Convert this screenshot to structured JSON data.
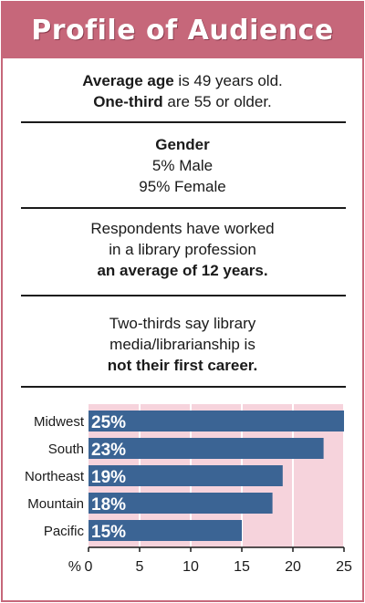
{
  "header": {
    "title": "Profile of Audience"
  },
  "age": {
    "line1_bold": "Average age",
    "line1_rest": " is 49 years old.",
    "line2_bold": "One-third",
    "line2_rest": " are 55 or older."
  },
  "gender": {
    "heading": "Gender",
    "male": "5% Male",
    "female": "95% Female"
  },
  "experience": {
    "line1": "Respondents have worked",
    "line2": "in a library profession",
    "line3_bold": "an average of 12 years."
  },
  "career": {
    "line1": "Two-thirds say library",
    "line2": "media/librarianship is",
    "line3_bold": "not their first career."
  },
  "colors": {
    "accent": "#c6677a",
    "bar": "#3b6494",
    "plot_bg": "#f6d3dc"
  },
  "chart_data": {
    "type": "bar",
    "orientation": "horizontal",
    "categories": [
      "Midwest",
      "South",
      "Northeast",
      "Mountain",
      "Pacific"
    ],
    "values": [
      25,
      23,
      19,
      18,
      15
    ],
    "value_labels": [
      "25%",
      "23%",
      "19%",
      "18%",
      "15%"
    ],
    "x_ticks": [
      "0",
      "5",
      "10",
      "15",
      "20",
      "25"
    ],
    "x_unit_label": "%",
    "xlim": [
      0,
      25
    ],
    "grid": true
  }
}
